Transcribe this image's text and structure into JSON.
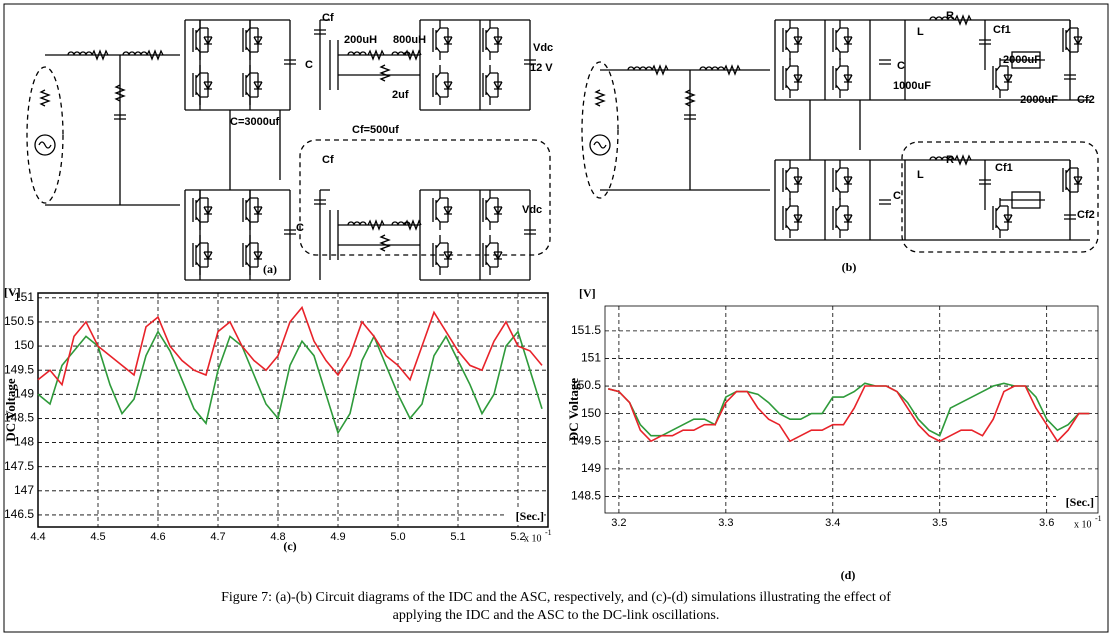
{
  "figure": {
    "circuit_a": {
      "labels": [
        "Cf",
        "C",
        "200uH",
        "800uH",
        "2uf",
        "Vdc",
        "12 V",
        "C=3000uf",
        "Cf=500uf",
        "Cf",
        "C",
        "Vdc"
      ],
      "caption": "(a)"
    },
    "circuit_b": {
      "labels": [
        "L",
        "R",
        "Cf1",
        "2000uF",
        "C",
        "1000uF",
        "Cf2",
        "2000uF",
        "L",
        "R",
        "Cf1",
        "C",
        "Cf2"
      ],
      "caption": "(b)"
    },
    "caption": [
      "Figure 7: (a)-(b) Circuit diagrams of the IDC and the ASC, respectively, and (c)-(d) simulations illustrating the effect of",
      "applying the IDC and the ASC to the DC-link oscillations."
    ]
  },
  "chart_data": [
    {
      "type": "line",
      "panel_label": "(c)",
      "y_unit": "[V]",
      "y_label": "DC Voltage",
      "x_unit": "[Sec.]",
      "x_multiplier": "x 10",
      "x_multiplier_exp": "-1",
      "xlim": [
        4.4,
        5.25
      ],
      "ylim": [
        146.25,
        151.1
      ],
      "xticks": [
        4.4,
        4.5,
        4.6,
        4.7,
        4.8,
        4.9,
        {
          "value": 5,
          "label": "5.0"
        },
        5.1,
        5.2
      ],
      "yticks": [
        146.5,
        147,
        147.5,
        148,
        148.5,
        149,
        149.5,
        150,
        150.5,
        151
      ],
      "grid": true,
      "x": [
        4.4,
        4.42,
        4.44,
        4.46,
        4.48,
        4.5,
        4.52,
        4.54,
        4.56,
        4.58,
        4.6,
        4.62,
        4.64,
        4.66,
        4.68,
        4.7,
        4.72,
        4.74,
        4.76,
        4.78,
        4.8,
        4.82,
        4.84,
        4.86,
        4.88,
        4.9,
        4.92,
        4.94,
        4.96,
        4.98,
        5.0,
        5.02,
        5.04,
        5.06,
        5.08,
        5.1,
        5.12,
        5.14,
        5.16,
        5.18,
        5.2,
        5.22,
        5.24
      ],
      "series": [
        {
          "color": "#2e9a3a",
          "values": [
            149.0,
            148.8,
            149.6,
            149.9,
            150.2,
            150.0,
            149.2,
            148.6,
            148.9,
            149.8,
            150.3,
            149.9,
            149.3,
            148.7,
            148.4,
            149.5,
            150.2,
            150.0,
            149.4,
            148.8,
            148.5,
            149.6,
            150.1,
            149.8,
            149.0,
            148.2,
            148.6,
            149.7,
            150.2,
            149.6,
            149.0,
            148.5,
            148.8,
            149.8,
            150.2,
            149.7,
            149.2,
            148.6,
            149.0,
            150.0,
            150.3,
            149.5,
            148.7
          ]
        },
        {
          "color": "#e8232a",
          "values": [
            149.3,
            149.5,
            149.2,
            150.2,
            150.5,
            150.0,
            149.8,
            149.6,
            149.4,
            150.4,
            150.6,
            150.0,
            149.7,
            149.5,
            149.4,
            150.3,
            150.5,
            150.0,
            149.7,
            149.5,
            149.8,
            150.5,
            150.8,
            150.1,
            149.7,
            149.4,
            149.8,
            150.5,
            150.2,
            149.8,
            149.6,
            149.3,
            150.0,
            150.7,
            150.3,
            149.9,
            149.6,
            149.5,
            150.1,
            150.5,
            150.0,
            149.9,
            149.6
          ]
        }
      ]
    },
    {
      "type": "line",
      "panel_label": "(d)",
      "y_unit": "[V]",
      "y_label": "DC Voltage",
      "x_unit": "[Sec.]",
      "x_multiplier": "x 10",
      "x_multiplier_exp": "-1",
      "xlim": [
        3.187,
        3.648
      ],
      "ylim": [
        148.2,
        151.95
      ],
      "xticks": [
        3.2,
        3.3,
        3.4,
        3.5,
        3.6
      ],
      "yticks": [
        148.5,
        149,
        149.5,
        150,
        150.5,
        151,
        151.5
      ],
      "grid": true,
      "x": [
        3.19,
        3.2,
        3.21,
        3.22,
        3.23,
        3.24,
        3.25,
        3.26,
        3.27,
        3.28,
        3.29,
        3.3,
        3.31,
        3.32,
        3.33,
        3.34,
        3.35,
        3.36,
        3.37,
        3.38,
        3.39,
        3.4,
        3.41,
        3.42,
        3.43,
        3.44,
        3.45,
        3.46,
        3.47,
        3.48,
        3.49,
        3.5,
        3.51,
        3.52,
        3.53,
        3.54,
        3.55,
        3.56,
        3.57,
        3.58,
        3.59,
        3.6,
        3.61,
        3.62,
        3.63,
        3.64
      ],
      "series": [
        {
          "color": "#2e9a3a",
          "values": [
            150.45,
            150.4,
            150.2,
            149.8,
            149.6,
            149.6,
            149.7,
            149.8,
            149.9,
            149.9,
            149.8,
            150.3,
            150.4,
            150.4,
            150.35,
            150.2,
            150.0,
            149.9,
            149.9,
            150.0,
            150.0,
            150.3,
            150.3,
            150.4,
            150.55,
            150.5,
            150.5,
            150.4,
            150.2,
            149.9,
            149.7,
            149.6,
            150.1,
            150.2,
            150.3,
            150.4,
            150.5,
            150.55,
            150.5,
            150.5,
            150.3,
            149.9,
            149.7,
            149.8,
            150.0,
            150.0
          ]
        },
        {
          "color": "#e8232a",
          "values": [
            150.45,
            150.4,
            150.2,
            149.7,
            149.5,
            149.6,
            149.6,
            149.7,
            149.7,
            149.8,
            149.8,
            150.2,
            150.4,
            150.4,
            150.1,
            149.9,
            149.8,
            149.5,
            149.6,
            149.7,
            149.7,
            149.8,
            149.8,
            150.1,
            150.5,
            150.5,
            150.5,
            150.4,
            150.1,
            149.8,
            149.6,
            149.5,
            149.6,
            149.7,
            149.7,
            149.6,
            149.9,
            150.4,
            150.5,
            150.5,
            150.1,
            149.8,
            149.5,
            149.7,
            150.0,
            150.0
          ]
        }
      ]
    }
  ]
}
